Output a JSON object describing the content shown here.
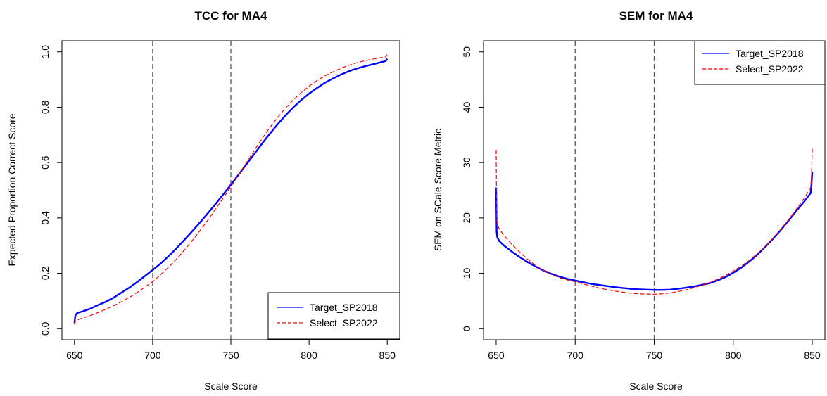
{
  "chart_data": [
    {
      "type": "line",
      "title": "TCC for MA4",
      "xlabel": "Scale Score",
      "ylabel": "Expected Proportion Correct Score",
      "xlim": [
        650,
        850
      ],
      "ylim": [
        0,
        1.0
      ],
      "xticks": [
        650,
        700,
        750,
        800,
        850
      ],
      "xtick_labels": [
        "650",
        "700",
        "750",
        "800",
        "850"
      ],
      "yticks": [
        0.0,
        0.2,
        0.4,
        0.6,
        0.8,
        1.0
      ],
      "ytick_labels": [
        "0.0",
        "0.2",
        "0.4",
        "0.6",
        "0.8",
        "1.0"
      ],
      "vlines": [
        700,
        750
      ],
      "legend_position": "bottom-right",
      "series": [
        {
          "name": "Target_SP2018",
          "color": "#0000ff",
          "style": "solid",
          "x": [
            650,
            650.5,
            651,
            652,
            655,
            660,
            665,
            670,
            675,
            680,
            685,
            690,
            695,
            700,
            705,
            710,
            715,
            720,
            725,
            730,
            735,
            740,
            745,
            750,
            755,
            760,
            765,
            770,
            775,
            780,
            785,
            790,
            795,
            800,
            805,
            810,
            815,
            820,
            825,
            830,
            835,
            840,
            845,
            849,
            850
          ],
          "y": [
            0.02,
            0.045,
            0.052,
            0.057,
            0.062,
            0.072,
            0.085,
            0.097,
            0.112,
            0.13,
            0.148,
            0.168,
            0.19,
            0.212,
            0.235,
            0.261,
            0.289,
            0.319,
            0.35,
            0.382,
            0.415,
            0.449,
            0.484,
            0.52,
            0.557,
            0.594,
            0.631,
            0.669,
            0.705,
            0.739,
            0.771,
            0.8,
            0.826,
            0.849,
            0.869,
            0.888,
            0.903,
            0.917,
            0.929,
            0.939,
            0.947,
            0.954,
            0.961,
            0.967,
            0.975
          ]
        },
        {
          "name": "Select_SP2022",
          "color": "#ff0000",
          "style": "dashed",
          "x": [
            650,
            650.5,
            651,
            655,
            660,
            665,
            670,
            675,
            680,
            685,
            690,
            695,
            700,
            705,
            710,
            715,
            720,
            725,
            730,
            735,
            740,
            745,
            750,
            755,
            760,
            765,
            770,
            775,
            780,
            785,
            790,
            795,
            800,
            805,
            810,
            815,
            820,
            825,
            830,
            835,
            840,
            845,
            849,
            850
          ],
          "y": [
            0.015,
            0.025,
            0.03,
            0.038,
            0.047,
            0.058,
            0.07,
            0.083,
            0.097,
            0.113,
            0.13,
            0.15,
            0.17,
            0.195,
            0.221,
            0.25,
            0.282,
            0.316,
            0.352,
            0.39,
            0.43,
            0.471,
            0.513,
            0.556,
            0.6,
            0.644,
            0.687,
            0.727,
            0.764,
            0.797,
            0.827,
            0.853,
            0.876,
            0.896,
            0.913,
            0.927,
            0.94,
            0.951,
            0.96,
            0.967,
            0.973,
            0.978,
            0.982,
            0.99
          ]
        }
      ]
    },
    {
      "type": "line",
      "title": "SEM for MA4",
      "xlabel": "Scale Score",
      "ylabel": "SEM on SCale Score Metric",
      "xlim": [
        650,
        850
      ],
      "ylim": [
        0,
        50
      ],
      "xticks": [
        650,
        700,
        750,
        800,
        850
      ],
      "xtick_labels": [
        "650",
        "700",
        "750",
        "800",
        "850"
      ],
      "yticks": [
        0,
        10,
        20,
        30,
        40,
        50
      ],
      "ytick_labels": [
        "0",
        "10",
        "20",
        "30",
        "40",
        "50"
      ],
      "vlines": [
        700,
        750
      ],
      "legend_position": "top-right",
      "series": [
        {
          "name": "Target_SP2018",
          "color": "#0000ff",
          "style": "solid",
          "x": [
            650,
            650.3,
            650.7,
            652,
            655,
            660,
            665,
            670,
            675,
            680,
            685,
            690,
            695,
            700,
            705,
            710,
            715,
            720,
            725,
            730,
            735,
            740,
            745,
            750,
            755,
            760,
            765,
            770,
            775,
            780,
            785,
            790,
            795,
            800,
            805,
            810,
            815,
            820,
            825,
            830,
            835,
            840,
            845,
            849,
            849.5,
            850
          ],
          "y": [
            25.5,
            17.5,
            16.5,
            15.8,
            15.0,
            13.9,
            12.9,
            12.0,
            11.2,
            10.5,
            9.9,
            9.4,
            9.0,
            8.7,
            8.4,
            8.1,
            7.9,
            7.7,
            7.5,
            7.35,
            7.2,
            7.1,
            7.05,
            7.0,
            7.0,
            7.05,
            7.2,
            7.4,
            7.6,
            7.9,
            8.2,
            8.7,
            9.3,
            10.1,
            11.0,
            12.1,
            13.3,
            14.7,
            16.2,
            17.8,
            19.5,
            21.3,
            23.0,
            24.5,
            26.0,
            28.3
          ]
        },
        {
          "name": "Select_SP2022",
          "color": "#ff0000",
          "style": "dashed",
          "x": [
            650,
            650.3,
            650.7,
            652,
            655,
            660,
            665,
            670,
            675,
            680,
            685,
            690,
            695,
            700,
            705,
            710,
            715,
            720,
            725,
            730,
            735,
            740,
            745,
            750,
            755,
            760,
            765,
            770,
            775,
            780,
            785,
            790,
            795,
            800,
            805,
            810,
            815,
            820,
            825,
            830,
            835,
            840,
            845,
            849,
            849.5,
            850
          ],
          "y": [
            32.3,
            20.0,
            18.8,
            18.0,
            16.8,
            15.2,
            13.8,
            12.5,
            11.4,
            10.5,
            9.8,
            9.2,
            8.8,
            8.5,
            8.1,
            7.7,
            7.35,
            7.05,
            6.8,
            6.6,
            6.4,
            6.3,
            6.25,
            6.2,
            6.3,
            6.45,
            6.7,
            7.0,
            7.4,
            7.8,
            8.3,
            8.9,
            9.6,
            10.4,
            11.3,
            12.3,
            13.5,
            14.8,
            16.3,
            17.9,
            19.7,
            21.6,
            23.6,
            25.5,
            27.5,
            32.5
          ]
        }
      ]
    }
  ]
}
